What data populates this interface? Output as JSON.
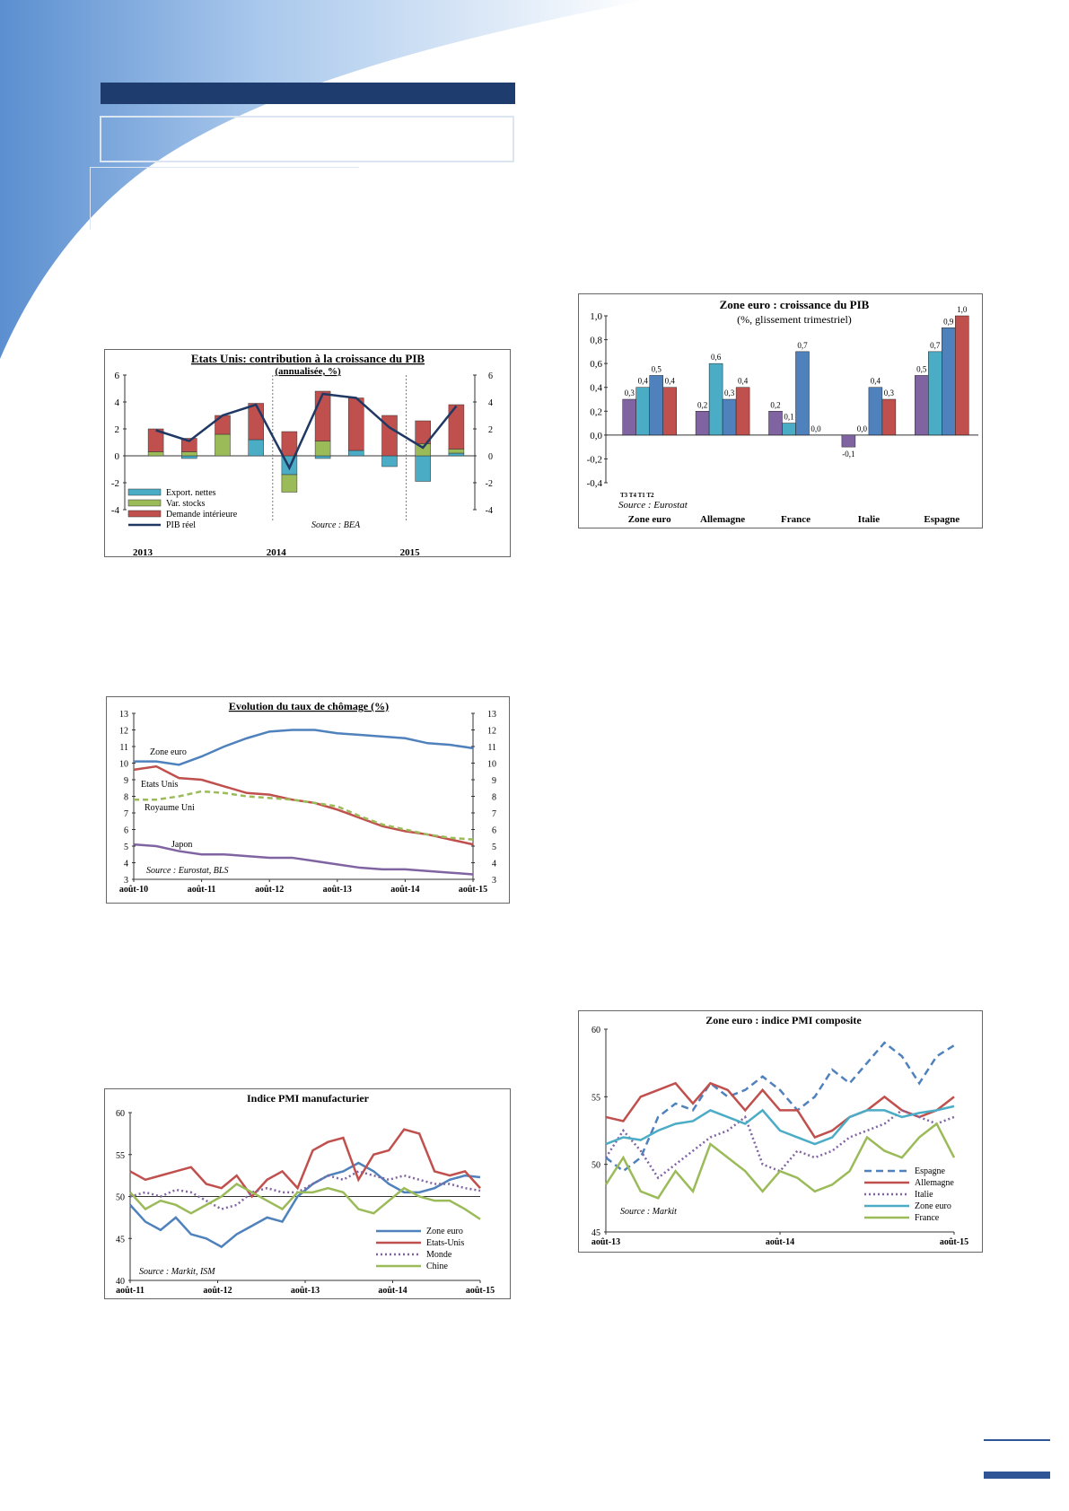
{
  "page": {
    "header_band_color": "#1f3c6e",
    "accent_color": "#2f5597"
  },
  "charts": [
    {
      "id": "us-gdp",
      "chart_data": {
        "type": "bar",
        "title": "Etats Unis: contribution à la croissance du PIB",
        "subtitle": "(annualisée, %)",
        "source": "Source : BEA",
        "ylim": [
          -4,
          6
        ],
        "yticks": [
          -4,
          -2,
          0,
          2,
          4,
          6
        ],
        "year_labels": [
          {
            "label": "2013",
            "index": 0
          },
          {
            "label": "2014",
            "index": 4
          },
          {
            "label": "2015",
            "index": 8
          }
        ],
        "year_dividers_after": [
          3,
          7
        ],
        "series": [
          {
            "name": "Export. nettes",
            "color": "#4bacc6",
            "values": [
              0.0,
              -0.2,
              0.0,
              1.2,
              -1.4,
              -0.2,
              0.4,
              -0.8,
              -1.9,
              0.2
            ]
          },
          {
            "name": "Var. stocks",
            "color": "#9bbb59",
            "values": [
              0.3,
              0.3,
              1.6,
              0.0,
              -1.3,
              1.1,
              0.0,
              0.0,
              0.9,
              0.3
            ]
          },
          {
            "name": "Demande intérieure",
            "color": "#c0504d",
            "values": [
              1.7,
              1.0,
              1.4,
              2.7,
              1.8,
              3.7,
              3.9,
              3.0,
              1.7,
              3.3
            ]
          },
          {
            "name": "PIB réel",
            "color": "#1f3864",
            "type": "line",
            "values": [
              1.9,
              1.1,
              3.0,
              3.8,
              -0.9,
              4.6,
              4.3,
              2.1,
              0.6,
              3.7
            ]
          }
        ]
      }
    },
    {
      "id": "ez-gdp",
      "chart_data": {
        "type": "bar",
        "title": "Zone euro : croissance du PIB",
        "subtitle": "(%, glissement trimestriel)",
        "source": "Source : Eurostat",
        "ylim": [
          -0.4,
          1.0
        ],
        "yticks": [
          "-0,4",
          "-0,2",
          "0,0",
          "0,2",
          "0,4",
          "0,6",
          "0,8",
          "1,0"
        ],
        "quarter_labels": "T3 T4 T1 T2",
        "categories": [
          "Zone euro",
          "Allemagne",
          "France",
          "Italie",
          "Espagne"
        ],
        "series_colors": [
          "#8064a2",
          "#4bacc6",
          "#4f81bd",
          "#c0504d"
        ],
        "values": [
          [
            0.3,
            0.4,
            0.5,
            0.4
          ],
          [
            0.2,
            0.6,
            0.3,
            0.4
          ],
          [
            0.2,
            0.1,
            0.7,
            0.0
          ],
          [
            -0.1,
            0.0,
            0.4,
            0.3
          ],
          [
            0.5,
            0.7,
            0.9,
            1.0
          ]
        ],
        "value_labels": [
          [
            "0,3",
            "0,4",
            "0,5",
            "0,4"
          ],
          [
            "0,2",
            "0,6",
            "0,3",
            "0,4"
          ],
          [
            "0,2",
            "0,1",
            "0,7",
            "0,0"
          ],
          [
            "-0,1",
            "0,0",
            "0,4",
            "0,3"
          ],
          [
            "0,5",
            "0,7",
            "0,9",
            "1,0"
          ]
        ]
      }
    },
    {
      "id": "unemployment",
      "chart_data": {
        "type": "line",
        "title": "Evolution du taux de chômage (%)",
        "source": "Source : Eurostat, BLS",
        "ylim": [
          3,
          13
        ],
        "yticks": [
          3,
          4,
          5,
          6,
          7,
          8,
          9,
          10,
          11,
          12,
          13
        ],
        "x_labels": [
          "août-10",
          "août-11",
          "août-12",
          "août-13",
          "août-14",
          "août-15"
        ],
        "series": [
          {
            "name": "Zone euro",
            "color": "#4f81bd",
            "dash": "",
            "values": [
              10.1,
              10.1,
              9.9,
              10.4,
              11.0,
              11.5,
              11.9,
              12.0,
              12.0,
              11.8,
              11.7,
              11.6,
              11.5,
              11.2,
              11.1,
              10.9
            ]
          },
          {
            "name": "Etats Unis",
            "color": "#c0504d",
            "dash": "",
            "values": [
              9.6,
              9.8,
              9.1,
              9.0,
              8.6,
              8.2,
              8.1,
              7.8,
              7.6,
              7.2,
              6.7,
              6.2,
              5.9,
              5.7,
              5.4,
              5.1
            ]
          },
          {
            "name": "Royaume Uni",
            "color": "#9bbb59",
            "dash": "6,4",
            "values": [
              7.8,
              7.8,
              8.0,
              8.3,
              8.2,
              8.0,
              7.9,
              7.8,
              7.6,
              7.4,
              6.8,
              6.3,
              6.0,
              5.7,
              5.5,
              5.4
            ]
          },
          {
            "name": "Japon",
            "color": "#8064a2",
            "dash": "",
            "values": [
              5.1,
              5.0,
              4.7,
              4.5,
              4.5,
              4.4,
              4.3,
              4.3,
              4.1,
              3.9,
              3.7,
              3.6,
              3.6,
              3.5,
              3.4,
              3.3
            ]
          }
        ]
      }
    },
    {
      "id": "pmi-manuf",
      "chart_data": {
        "type": "line",
        "title": "Indice PMI manufacturier",
        "source": "Source : Markit, ISM",
        "ylim": [
          40,
          60
        ],
        "yticks": [
          40,
          45,
          50,
          55,
          60
        ],
        "x_labels": [
          "août-11",
          "août-12",
          "août-13",
          "août-14",
          "août-15"
        ],
        "series": [
          {
            "name": "Zone euro",
            "color": "#4f81bd",
            "dash": "",
            "values": [
              49.0,
              47.0,
              46.0,
              47.5,
              45.5,
              45.0,
              44.0,
              45.5,
              46.5,
              47.5,
              47.0,
              50.0,
              51.5,
              52.5,
              53.0,
              54.0,
              53.0,
              51.5,
              50.5,
              50.5,
              51.0,
              52.0,
              52.5,
              52.3
            ]
          },
          {
            "name": "Etats-Unis",
            "color": "#c0504d",
            "dash": "",
            "values": [
              53.0,
              52.0,
              52.5,
              53.0,
              53.5,
              51.5,
              51.0,
              52.5,
              50.0,
              52.0,
              53.0,
              51.0,
              55.5,
              56.5,
              57.0,
              52.0,
              55.0,
              55.5,
              58.0,
              57.5,
              53.0,
              52.5,
              53.0,
              51.0
            ]
          },
          {
            "name": "Monde",
            "color": "#8064a2",
            "dash": "2,3",
            "values": [
              50.0,
              50.5,
              50.0,
              50.8,
              50.5,
              49.5,
              48.5,
              49.0,
              50.5,
              51.0,
              50.5,
              50.5,
              51.5,
              52.5,
              52.0,
              53.0,
              52.5,
              52.0,
              52.5,
              52.0,
              51.5,
              51.5,
              51.0,
              50.7
            ]
          },
          {
            "name": "Chine",
            "color": "#9bbb59",
            "dash": "",
            "values": [
              50.5,
              48.5,
              49.5,
              49.0,
              48.0,
              49.0,
              50.0,
              51.5,
              50.5,
              49.5,
              48.5,
              50.5,
              50.5,
              51.0,
              50.5,
              48.5,
              48.0,
              49.5,
              51.0,
              50.0,
              49.5,
              49.5,
              48.5,
              47.3
            ]
          }
        ]
      }
    },
    {
      "id": "pmi-composite",
      "chart_data": {
        "type": "line",
        "title": "Zone euro : indice PMI composite",
        "source": "Source : Markit",
        "ylim": [
          45,
          60
        ],
        "yticks": [
          45,
          50,
          55,
          60
        ],
        "x_labels": [
          "août-13",
          "août-14",
          "août-15"
        ],
        "series": [
          {
            "name": "Espagne",
            "color": "#4f81bd",
            "dash": "8,5",
            "values": [
              50.5,
              49.5,
              50.5,
              53.5,
              54.5,
              54.0,
              56.0,
              55.0,
              55.5,
              56.5,
              55.5,
              54.0,
              55.0,
              57.0,
              56.0,
              57.5,
              59.0,
              58.0,
              56.0,
              58.0,
              58.8
            ]
          },
          {
            "name": "Allemagne",
            "color": "#c0504d",
            "dash": "",
            "values": [
              53.5,
              53.2,
              55.0,
              55.5,
              56.0,
              54.5,
              56.0,
              55.5,
              54.0,
              55.5,
              54.0,
              54.0,
              52.0,
              52.5,
              53.5,
              54.0,
              55.0,
              54.0,
              53.5,
              54.0,
              55.0
            ]
          },
          {
            "name": "Italie",
            "color": "#8064a2",
            "dash": "2,3",
            "values": [
              50.5,
              52.5,
              51.0,
              49.0,
              50.0,
              51.0,
              52.0,
              52.5,
              53.5,
              50.0,
              49.5,
              51.0,
              50.5,
              51.0,
              52.0,
              52.5,
              53.0,
              54.0,
              53.5,
              53.0,
              53.5
            ]
          },
          {
            "name": "Zone euro",
            "color": "#4bacc6",
            "dash": "",
            "values": [
              51.5,
              52.0,
              51.8,
              52.5,
              53.0,
              53.2,
              54.0,
              53.5,
              53.0,
              54.0,
              52.5,
              52.0,
              51.5,
              52.0,
              53.5,
              54.0,
              54.0,
              53.5,
              53.8,
              54.0,
              54.3
            ]
          },
          {
            "name": "France",
            "color": "#9bbb59",
            "dash": "",
            "values": [
              48.5,
              50.5,
              48.0,
              47.5,
              49.5,
              48.0,
              51.5,
              50.5,
              49.5,
              48.0,
              49.5,
              49.0,
              48.0,
              48.5,
              49.5,
              52.0,
              51.0,
              50.5,
              52.0,
              53.0,
              50.5
            ]
          }
        ]
      }
    }
  ]
}
